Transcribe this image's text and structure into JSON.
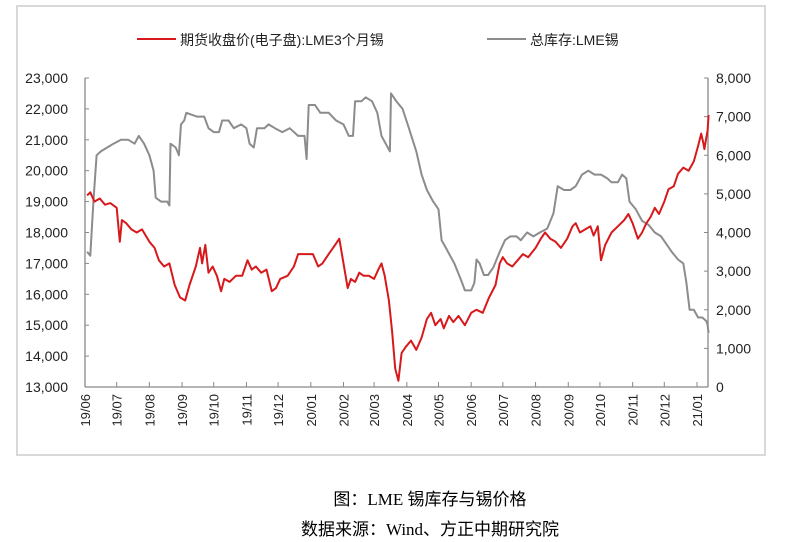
{
  "chart_data": {
    "type": "line",
    "title": "",
    "legend_position": "top",
    "grid": false,
    "x_tick_labels": [
      "19/06",
      "19/07",
      "19/08",
      "19/09",
      "19/10",
      "19/11",
      "19/12",
      "20/01",
      "20/02",
      "20/03",
      "20/04",
      "20/05",
      "20/06",
      "20/07",
      "20/08",
      "20/09",
      "20/10",
      "20/11",
      "20/12",
      "21/01"
    ],
    "x_tick_dates": [
      "2019-06-01",
      "2019-07-01",
      "2019-08-01",
      "2019-09-01",
      "2019-10-01",
      "2019-11-01",
      "2019-12-01",
      "2020-01-01",
      "2020-02-01",
      "2020-03-01",
      "2020-04-01",
      "2020-05-01",
      "2020-06-01",
      "2020-07-01",
      "2020-08-01",
      "2020-09-01",
      "2020-10-01",
      "2020-11-01",
      "2020-12-01",
      "2021-01-01"
    ],
    "x_range": [
      "2019-06-01",
      "2021-01-12"
    ],
    "y_left": {
      "range": [
        13000,
        23000
      ],
      "ticks": [
        "13,000",
        "14,000",
        "15,000",
        "16,000",
        "17,000",
        "18,000",
        "19,000",
        "20,000",
        "21,000",
        "22,000",
        "23,000"
      ]
    },
    "y_right": {
      "range": [
        0,
        8000
      ],
      "ticks": [
        "0",
        "1,000",
        "2,000",
        "3,000",
        "4,000",
        "5,000",
        "6,000",
        "7,000",
        "8,000"
      ]
    },
    "series": [
      {
        "name": "期货收盘价(电子盘):LME3个月锡",
        "axis": "left",
        "color": "#d7191c",
        "points": [
          [
            "2019-06-03",
            19200
          ],
          [
            "2019-06-06",
            19300
          ],
          [
            "2019-06-10",
            19000
          ],
          [
            "2019-06-15",
            19100
          ],
          [
            "2019-06-20",
            18900
          ],
          [
            "2019-06-25",
            18950
          ],
          [
            "2019-07-01",
            18800
          ],
          [
            "2019-07-04",
            17700
          ],
          [
            "2019-07-06",
            18400
          ],
          [
            "2019-07-10",
            18300
          ],
          [
            "2019-07-15",
            18100
          ],
          [
            "2019-07-20",
            18000
          ],
          [
            "2019-07-25",
            18100
          ],
          [
            "2019-08-01",
            17700
          ],
          [
            "2019-08-06",
            17500
          ],
          [
            "2019-08-10",
            17100
          ],
          [
            "2019-08-15",
            16900
          ],
          [
            "2019-08-20",
            17000
          ],
          [
            "2019-08-25",
            16300
          ],
          [
            "2019-08-30",
            15900
          ],
          [
            "2019-09-04",
            15800
          ],
          [
            "2019-09-08",
            16300
          ],
          [
            "2019-09-14",
            16900
          ],
          [
            "2019-09-18",
            17500
          ],
          [
            "2019-09-20",
            17000
          ],
          [
            "2019-09-23",
            17600
          ],
          [
            "2019-09-26",
            16700
          ],
          [
            "2019-09-30",
            16900
          ],
          [
            "2019-10-04",
            16600
          ],
          [
            "2019-10-08",
            16100
          ],
          [
            "2019-10-11",
            16500
          ],
          [
            "2019-10-16",
            16400
          ],
          [
            "2019-10-22",
            16600
          ],
          [
            "2019-10-28",
            16600
          ],
          [
            "2019-11-02",
            17100
          ],
          [
            "2019-11-06",
            16800
          ],
          [
            "2019-11-10",
            16900
          ],
          [
            "2019-11-15",
            16700
          ],
          [
            "2019-11-20",
            16800
          ],
          [
            "2019-11-25",
            16100
          ],
          [
            "2019-11-29",
            16200
          ],
          [
            "2019-12-03",
            16500
          ],
          [
            "2019-12-10",
            16600
          ],
          [
            "2019-12-16",
            16900
          ],
          [
            "2019-12-20",
            17300
          ],
          [
            "2019-12-25",
            17300
          ],
          [
            "2020-01-03",
            17300
          ],
          [
            "2020-01-08",
            16900
          ],
          [
            "2020-01-12",
            17000
          ],
          [
            "2020-01-18",
            17300
          ],
          [
            "2020-01-24",
            17600
          ],
          [
            "2020-01-28",
            17800
          ],
          [
            "2020-02-01",
            17000
          ],
          [
            "2020-02-05",
            16200
          ],
          [
            "2020-02-08",
            16500
          ],
          [
            "2020-02-12",
            16400
          ],
          [
            "2020-02-16",
            16700
          ],
          [
            "2020-02-20",
            16600
          ],
          [
            "2020-02-25",
            16600
          ],
          [
            "2020-03-01",
            16500
          ],
          [
            "2020-03-05",
            16800
          ],
          [
            "2020-03-08",
            17000
          ],
          [
            "2020-03-11",
            16600
          ],
          [
            "2020-03-15",
            15800
          ],
          [
            "2020-03-18",
            14800
          ],
          [
            "2020-03-21",
            13600
          ],
          [
            "2020-03-24",
            13200
          ],
          [
            "2020-03-27",
            14100
          ],
          [
            "2020-03-31",
            14300
          ],
          [
            "2020-04-05",
            14500
          ],
          [
            "2020-04-10",
            14200
          ],
          [
            "2020-04-15",
            14600
          ],
          [
            "2020-04-20",
            15200
          ],
          [
            "2020-04-24",
            15400
          ],
          [
            "2020-04-28",
            15000
          ],
          [
            "2020-05-03",
            15200
          ],
          [
            "2020-05-06",
            14900
          ],
          [
            "2020-05-11",
            15300
          ],
          [
            "2020-05-15",
            15100
          ],
          [
            "2020-05-20",
            15300
          ],
          [
            "2020-05-26",
            15000
          ],
          [
            "2020-06-01",
            15400
          ],
          [
            "2020-06-06",
            15500
          ],
          [
            "2020-06-12",
            15400
          ],
          [
            "2020-06-18",
            15900
          ],
          [
            "2020-06-24",
            16300
          ],
          [
            "2020-06-28",
            17000
          ],
          [
            "2020-07-01",
            17200
          ],
          [
            "2020-07-05",
            17000
          ],
          [
            "2020-07-10",
            16900
          ],
          [
            "2020-07-15",
            17100
          ],
          [
            "2020-07-20",
            17300
          ],
          [
            "2020-07-25",
            17200
          ],
          [
            "2020-08-01",
            17500
          ],
          [
            "2020-08-06",
            17800
          ],
          [
            "2020-08-10",
            18000
          ],
          [
            "2020-08-15",
            17800
          ],
          [
            "2020-08-20",
            17700
          ],
          [
            "2020-08-25",
            17500
          ],
          [
            "2020-08-31",
            17800
          ],
          [
            "2020-09-05",
            18200
          ],
          [
            "2020-09-08",
            18300
          ],
          [
            "2020-09-12",
            18000
          ],
          [
            "2020-09-17",
            18100
          ],
          [
            "2020-09-22",
            18200
          ],
          [
            "2020-09-25",
            17900
          ],
          [
            "2020-09-29",
            18200
          ],
          [
            "2020-10-02",
            17100
          ],
          [
            "2020-10-06",
            17600
          ],
          [
            "2020-10-12",
            18000
          ],
          [
            "2020-10-18",
            18200
          ],
          [
            "2020-10-24",
            18400
          ],
          [
            "2020-10-28",
            18600
          ],
          [
            "2020-11-01",
            18300
          ],
          [
            "2020-11-06",
            17800
          ],
          [
            "2020-11-10",
            18000
          ],
          [
            "2020-11-14",
            18300
          ],
          [
            "2020-11-18",
            18500
          ],
          [
            "2020-11-22",
            18800
          ],
          [
            "2020-11-26",
            18600
          ],
          [
            "2020-12-01",
            19000
          ],
          [
            "2020-12-05",
            19400
          ],
          [
            "2020-12-10",
            19500
          ],
          [
            "2020-12-14",
            19900
          ],
          [
            "2020-12-19",
            20100
          ],
          [
            "2020-12-24",
            20000
          ],
          [
            "2020-12-29",
            20300
          ],
          [
            "2021-01-02",
            20800
          ],
          [
            "2021-01-05",
            21200
          ],
          [
            "2021-01-07",
            20900
          ],
          [
            "2021-01-08",
            20700
          ],
          [
            "2021-01-10",
            21100
          ],
          [
            "2021-01-11",
            21300
          ],
          [
            "2021-01-12",
            21800
          ]
        ]
      },
      {
        "name": "总库存:LME锡",
        "axis": "right",
        "color": "#8c8c8c",
        "points": [
          [
            "2019-06-03",
            3500
          ],
          [
            "2019-06-06",
            3400
          ],
          [
            "2019-06-09",
            4800
          ],
          [
            "2019-06-12",
            6000
          ],
          [
            "2019-06-16",
            6100
          ],
          [
            "2019-06-22",
            6200
          ],
          [
            "2019-06-28",
            6300
          ],
          [
            "2019-07-05",
            6400
          ],
          [
            "2019-07-12",
            6400
          ],
          [
            "2019-07-18",
            6300
          ],
          [
            "2019-07-22",
            6500
          ],
          [
            "2019-07-27",
            6300
          ],
          [
            "2019-08-01",
            6000
          ],
          [
            "2019-08-05",
            5600
          ],
          [
            "2019-08-07",
            4900
          ],
          [
            "2019-08-12",
            4800
          ],
          [
            "2019-08-18",
            4800
          ],
          [
            "2019-08-20",
            4700
          ],
          [
            "2019-08-21",
            6300
          ],
          [
            "2019-08-26",
            6200
          ],
          [
            "2019-08-29",
            6000
          ],
          [
            "2019-08-31",
            6800
          ],
          [
            "2019-09-03",
            6900
          ],
          [
            "2019-09-05",
            7100
          ],
          [
            "2019-09-15",
            7000
          ],
          [
            "2019-09-22",
            7000
          ],
          [
            "2019-09-26",
            6700
          ],
          [
            "2019-10-01",
            6600
          ],
          [
            "2019-10-06",
            6600
          ],
          [
            "2019-10-09",
            6900
          ],
          [
            "2019-10-15",
            6900
          ],
          [
            "2019-10-20",
            6700
          ],
          [
            "2019-10-27",
            6800
          ],
          [
            "2019-11-01",
            6700
          ],
          [
            "2019-11-04",
            6300
          ],
          [
            "2019-11-08",
            6200
          ],
          [
            "2019-11-11",
            6700
          ],
          [
            "2019-11-18",
            6700
          ],
          [
            "2019-11-22",
            6800
          ],
          [
            "2019-11-28",
            6700
          ],
          [
            "2019-12-05",
            6600
          ],
          [
            "2019-12-12",
            6700
          ],
          [
            "2019-12-20",
            6500
          ],
          [
            "2019-12-26",
            6500
          ],
          [
            "2019-12-28",
            5900
          ],
          [
            "2019-12-30",
            7300
          ],
          [
            "2020-01-05",
            7300
          ],
          [
            "2020-01-10",
            7100
          ],
          [
            "2020-01-18",
            7100
          ],
          [
            "2020-01-25",
            6900
          ],
          [
            "2020-02-01",
            6800
          ],
          [
            "2020-02-06",
            6500
          ],
          [
            "2020-02-10",
            6500
          ],
          [
            "2020-02-12",
            7400
          ],
          [
            "2020-02-18",
            7400
          ],
          [
            "2020-02-22",
            7500
          ],
          [
            "2020-02-28",
            7400
          ],
          [
            "2020-03-04",
            7100
          ],
          [
            "2020-03-08",
            6500
          ],
          [
            "2020-03-12",
            6300
          ],
          [
            "2020-03-16",
            6100
          ],
          [
            "2020-03-17",
            7600
          ],
          [
            "2020-03-22",
            7400
          ],
          [
            "2020-03-28",
            7200
          ],
          [
            "2020-04-03",
            6700
          ],
          [
            "2020-04-10",
            6100
          ],
          [
            "2020-04-15",
            5500
          ],
          [
            "2020-04-20",
            5100
          ],
          [
            "2020-04-26",
            4800
          ],
          [
            "2020-05-01",
            4600
          ],
          [
            "2020-05-04",
            3800
          ],
          [
            "2020-05-08",
            3600
          ],
          [
            "2020-05-12",
            3400
          ],
          [
            "2020-05-16",
            3200
          ],
          [
            "2020-05-22",
            2800
          ],
          [
            "2020-05-26",
            2500
          ],
          [
            "2020-06-01",
            2500
          ],
          [
            "2020-06-04",
            2700
          ],
          [
            "2020-06-06",
            3300
          ],
          [
            "2020-06-09",
            3200
          ],
          [
            "2020-06-13",
            2900
          ],
          [
            "2020-06-17",
            2900
          ],
          [
            "2020-06-22",
            3100
          ],
          [
            "2020-06-28",
            3500
          ],
          [
            "2020-07-03",
            3800
          ],
          [
            "2020-07-08",
            3900
          ],
          [
            "2020-07-14",
            3900
          ],
          [
            "2020-07-18",
            3800
          ],
          [
            "2020-07-24",
            4000
          ],
          [
            "2020-07-30",
            3900
          ],
          [
            "2020-08-05",
            4000
          ],
          [
            "2020-08-12",
            4100
          ],
          [
            "2020-08-18",
            4500
          ],
          [
            "2020-08-22",
            5200
          ],
          [
            "2020-08-28",
            5100
          ],
          [
            "2020-09-03",
            5100
          ],
          [
            "2020-09-08",
            5200
          ],
          [
            "2020-09-14",
            5500
          ],
          [
            "2020-09-20",
            5600
          ],
          [
            "2020-09-26",
            5500
          ],
          [
            "2020-10-02",
            5500
          ],
          [
            "2020-10-08",
            5400
          ],
          [
            "2020-10-12",
            5300
          ],
          [
            "2020-10-18",
            5300
          ],
          [
            "2020-10-22",
            5500
          ],
          [
            "2020-10-26",
            5400
          ],
          [
            "2020-10-29",
            4800
          ],
          [
            "2020-11-04",
            4600
          ],
          [
            "2020-11-10",
            4300
          ],
          [
            "2020-11-16",
            4200
          ],
          [
            "2020-11-22",
            4000
          ],
          [
            "2020-11-28",
            3900
          ],
          [
            "2020-12-03",
            3700
          ],
          [
            "2020-12-08",
            3500
          ],
          [
            "2020-12-14",
            3300
          ],
          [
            "2020-12-19",
            3200
          ],
          [
            "2020-12-22",
            2700
          ],
          [
            "2020-12-25",
            2000
          ],
          [
            "2020-12-29",
            2000
          ],
          [
            "2021-01-02",
            1800
          ],
          [
            "2021-01-06",
            1800
          ],
          [
            "2021-01-10",
            1700
          ],
          [
            "2021-01-11",
            1600
          ],
          [
            "2021-01-12",
            1400
          ]
        ]
      }
    ]
  },
  "caption": {
    "figure": "图：LME 锡库存与锡价格",
    "source": "数据来源：Wind、方正中期研究院"
  }
}
